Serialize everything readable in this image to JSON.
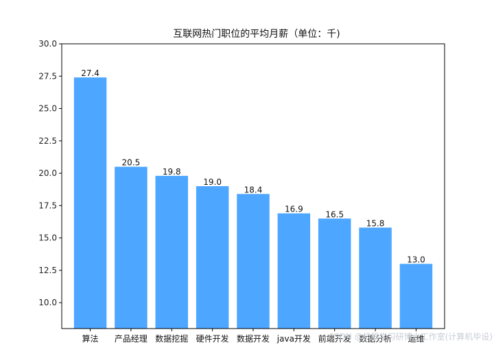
{
  "chart_data": {
    "type": "bar",
    "title": "互联网热门职位的平均月薪（单位：千)",
    "xlabel": "",
    "ylabel": "",
    "categories": [
      "算法",
      "产品经理",
      "数据挖掘",
      "硬件开发",
      "数据开发",
      "java开发",
      "前端开发",
      "数据分析",
      "运维"
    ],
    "values": [
      27.4,
      20.5,
      19.8,
      19.0,
      18.4,
      16.9,
      16.5,
      15.8,
      13.0
    ],
    "value_labels": [
      "27.4",
      "20.5",
      "19.8",
      "19.0",
      "18.4",
      "16.9",
      "16.5",
      "15.8",
      "13.0"
    ],
    "ylim": [
      8.0,
      30.0
    ],
    "yticks": [
      10.0,
      12.5,
      15.0,
      17.5,
      20.0,
      22.5,
      25.0,
      27.5,
      30.0
    ],
    "ytick_labels": [
      "10.0",
      "12.5",
      "15.0",
      "17.5",
      "20.0",
      "22.5",
      "25.0",
      "27.5",
      "30.0"
    ],
    "grid": false,
    "bar_color": "#4da6ff",
    "watermark": "CSDN @机器学习研博士工作室(计算机毕设)"
  }
}
